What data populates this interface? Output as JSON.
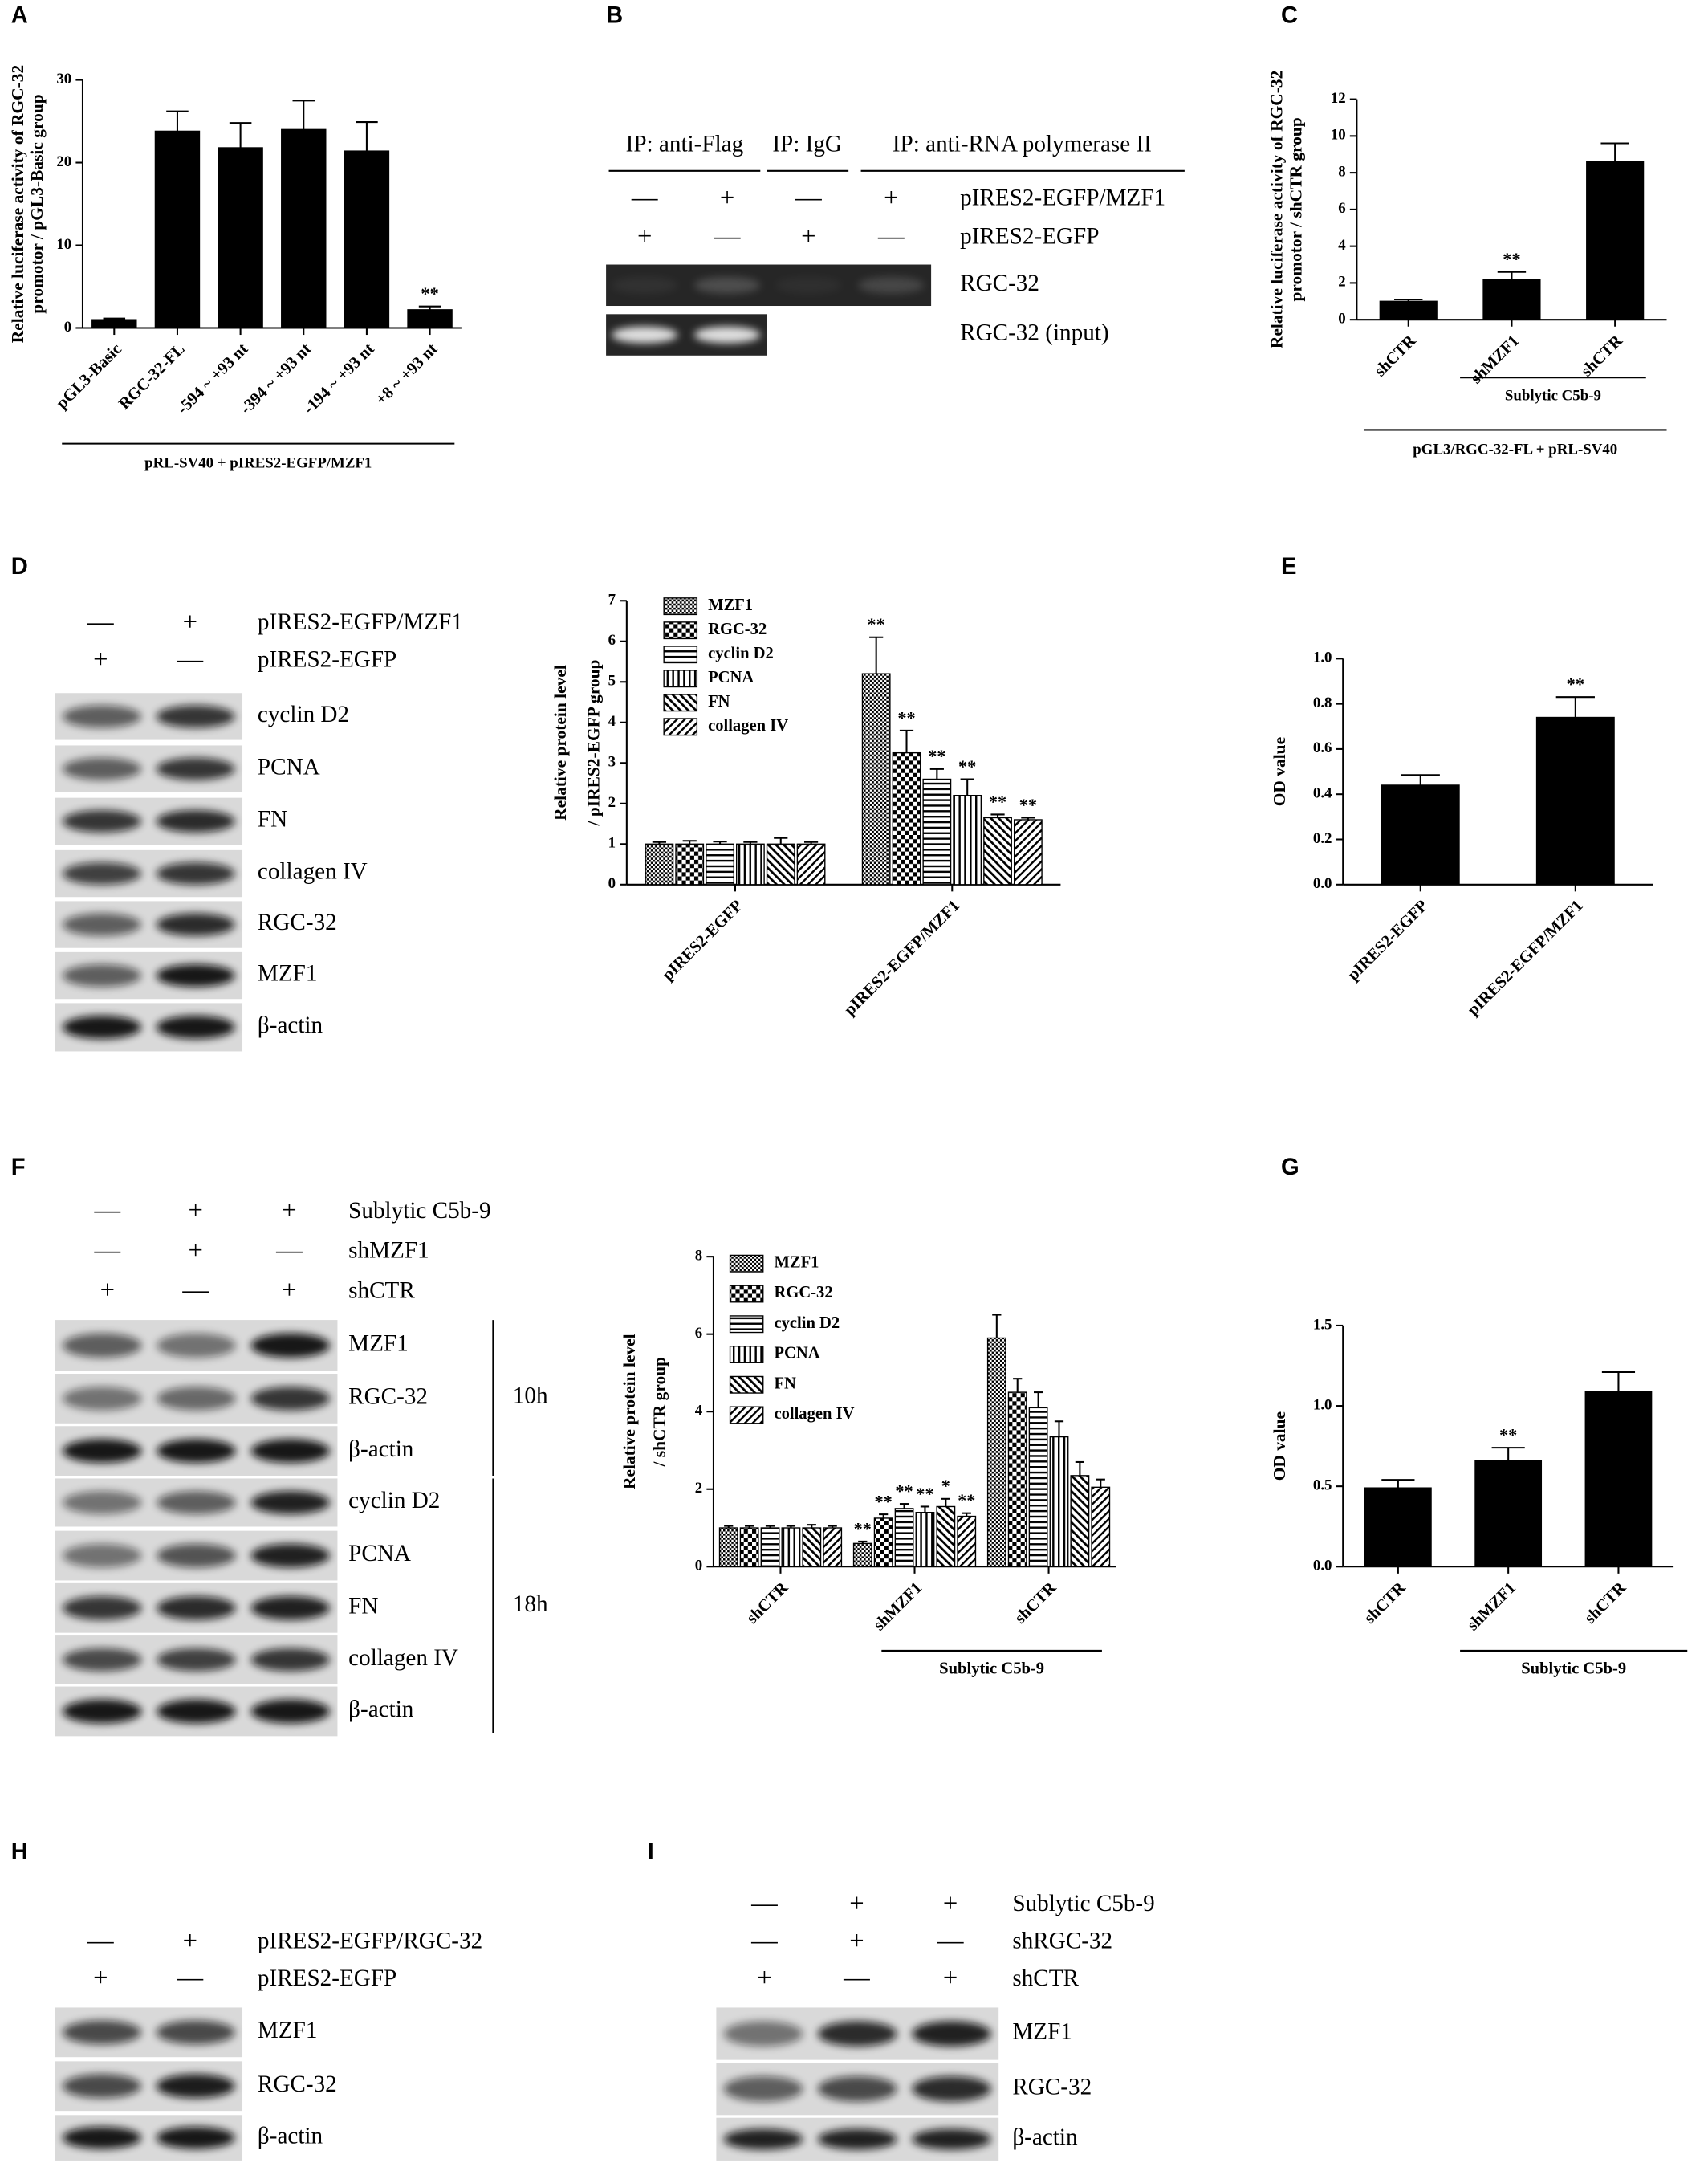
{
  "panel_letters": [
    "A",
    "B",
    "C",
    "D",
    "E",
    "F",
    "G",
    "H",
    "I"
  ],
  "chart_data": [
    {
      "type": "bar",
      "ylabel": [
        "Relative luciferase activity of RGC-32",
        "promotor / pGL3-Basic group"
      ],
      "categories": [
        "pGL3-Basic",
        "RGC-32-FL",
        "-594 ~ +93 nt",
        "-394 ~ +93 nt",
        "-194 ~ +93 nt",
        "+8 ~ +93 nt"
      ],
      "values": [
        1,
        23.8,
        21.8,
        24,
        21.4,
        2.2
      ],
      "errors": [
        0.15,
        2.4,
        3,
        3.5,
        3.5,
        0.4
      ],
      "significance": [
        null,
        null,
        null,
        null,
        null,
        "**"
      ],
      "ylim": [
        0,
        30
      ],
      "yticks": [
        0,
        10,
        20,
        30
      ],
      "color": "#000000",
      "xlabel": "pRL-SV40 + pIRES2-EGFP/MZF1"
    },
    {
      "type": "bar",
      "ylabel": [
        "Relative luciferase activity of RGC-32",
        "promotor / shCTR group"
      ],
      "categories": [
        "shCTR",
        "shMZF1",
        "shCTR"
      ],
      "values": [
        1,
        2.2,
        8.6
      ],
      "errors": [
        0.1,
        0.4,
        1.0
      ],
      "significance": [
        null,
        "**",
        null
      ],
      "ylim": [
        0,
        12
      ],
      "yticks": [
        0,
        2,
        4,
        6,
        8,
        10,
        12
      ],
      "color": "#000000",
      "group_label": "Sublytic C5b-9",
      "xlabel": "pGL3/RGC-32-FL + pRL-SV40"
    },
    {
      "type": "grouped-bar",
      "ylabel": [
        "Relative protein level",
        "/ pIRES2-EGFP group"
      ],
      "categories": [
        "pIRES2-EGFP",
        "pIRES2-EGFP/MZF1"
      ],
      "ylim": [
        0,
        7
      ],
      "yticks": [
        0,
        1,
        2,
        3,
        4,
        5,
        6,
        7
      ],
      "color": "#000000",
      "series": [
        {
          "name": "MZF1",
          "pattern": "dense-crosshatch",
          "values": [
            1,
            5.2
          ],
          "errors": [
            0.05,
            0.9
          ],
          "significance": [
            null,
            "**"
          ]
        },
        {
          "name": "RGC-32",
          "pattern": "checker",
          "values": [
            1,
            3.25
          ],
          "errors": [
            0.08,
            0.55
          ],
          "significance": [
            null,
            "**"
          ]
        },
        {
          "name": "cyclin D2",
          "pattern": "horizontal",
          "values": [
            1,
            2.6
          ],
          "errors": [
            0.06,
            0.25
          ],
          "significance": [
            null,
            "**"
          ]
        },
        {
          "name": "PCNA",
          "pattern": "vertical",
          "values": [
            1,
            2.2
          ],
          "errors": [
            0.05,
            0.4
          ],
          "significance": [
            null,
            "**"
          ]
        },
        {
          "name": "FN",
          "pattern": "diagonal-up",
          "values": [
            1,
            1.65
          ],
          "errors": [
            0.15,
            0.08
          ],
          "significance": [
            null,
            "**"
          ]
        },
        {
          "name": "collagen IV",
          "pattern": "diagonal-down",
          "values": [
            1,
            1.6
          ],
          "errors": [
            0.05,
            0.05
          ],
          "significance": [
            null,
            "**"
          ]
        }
      ]
    },
    {
      "type": "bar",
      "ylabel": [
        "OD value"
      ],
      "categories": [
        "pIRES2-EGFP",
        "pIRES2-EGFP/MZF1"
      ],
      "values": [
        0.44,
        0.74
      ],
      "errors": [
        0.045,
        0.09
      ],
      "significance": [
        null,
        "**"
      ],
      "ylim": [
        0,
        1.0
      ],
      "yticks": [
        {
          "value": 0,
          "label": "0.0"
        },
        {
          "value": 0.2,
          "label": "0.2"
        },
        {
          "value": 0.4,
          "label": "0.4"
        },
        {
          "value": 0.6,
          "label": "0.6"
        },
        {
          "value": 0.8,
          "label": "0.8"
        },
        {
          "value": 1.0,
          "label": "1.0"
        }
      ],
      "color": "#000000"
    },
    {
      "type": "grouped-bar",
      "ylabel": [
        "Relative protein level",
        "/ shCTR group"
      ],
      "categories": [
        "shCTR",
        "shMZF1",
        "shCTR"
      ],
      "ylim": [
        0,
        8
      ],
      "yticks": [
        0,
        2,
        4,
        6,
        8
      ],
      "color": "#000000",
      "group_label": "Sublytic C5b-9",
      "series": [
        {
          "name": "MZF1",
          "pattern": "dense-crosshatch",
          "values": [
            1,
            0.6,
            5.9
          ],
          "errors": [
            0.05,
            0.05,
            0.6
          ],
          "significance": [
            null,
            "**",
            null
          ]
        },
        {
          "name": "RGC-32",
          "pattern": "checker",
          "values": [
            1,
            1.25,
            4.5
          ],
          "errors": [
            0.05,
            0.1,
            0.35
          ],
          "significance": [
            null,
            "**",
            null
          ]
        },
        {
          "name": "cyclin D2",
          "pattern": "horizontal",
          "values": [
            1,
            1.5,
            4.1
          ],
          "errors": [
            0.05,
            0.12,
            0.4
          ],
          "significance": [
            null,
            "**",
            null
          ]
        },
        {
          "name": "PCNA",
          "pattern": "vertical",
          "values": [
            1,
            1.4,
            3.35
          ],
          "errors": [
            0.05,
            0.15,
            0.4
          ],
          "significance": [
            null,
            "**",
            null
          ]
        },
        {
          "name": "FN",
          "pattern": "diagonal-up",
          "values": [
            1,
            1.55,
            2.35
          ],
          "errors": [
            0.08,
            0.2,
            0.35
          ],
          "significance": [
            null,
            "*",
            null
          ]
        },
        {
          "name": "collagen IV",
          "pattern": "diagonal-down",
          "values": [
            1,
            1.3,
            2.05
          ],
          "errors": [
            0.05,
            0.08,
            0.2
          ],
          "significance": [
            null,
            "**",
            null
          ]
        }
      ]
    },
    {
      "type": "bar",
      "ylabel": [
        "OD value"
      ],
      "categories": [
        "shCTR",
        "shMZF1",
        "shCTR"
      ],
      "values": [
        0.49,
        0.66,
        1.09
      ],
      "errors": [
        0.05,
        0.08,
        0.12
      ],
      "significance": [
        null,
        "**",
        null
      ],
      "ylim": [
        0,
        1.5
      ],
      "yticks": [
        {
          "value": 0,
          "label": "0.0"
        },
        {
          "value": 0.5,
          "label": "0.5"
        },
        {
          "value": 1.0,
          "label": "1.0"
        },
        {
          "value": 1.5,
          "label": "1.5"
        }
      ],
      "color": "#000000",
      "group_label": "Sublytic C5b-9"
    }
  ],
  "gel_B": {
    "ip_groups": [
      "IP: anti-Flag",
      "IP: IgG",
      "IP: anti-RNA polymerase II"
    ],
    "conditions": [
      {
        "label": "pIRES2-EGFP/MZF1",
        "signs": [
          "—",
          "+",
          "—",
          "+"
        ]
      },
      {
        "label": "pIRES2-EGFP",
        "signs": [
          "+",
          "—",
          "+",
          "—"
        ]
      }
    ],
    "bands": [
      "RGC-32",
      "RGC-32 (input)"
    ]
  },
  "blot_D": {
    "conditions": [
      {
        "label": "pIRES2-EGFP/MZF1",
        "signs": [
          "—",
          "+"
        ]
      },
      {
        "label": "pIRES2-EGFP",
        "signs": [
          "+",
          "—"
        ]
      }
    ],
    "bands": [
      "cyclin D2",
      "PCNA",
      "FN",
      "collagen IV",
      "RGC-32",
      "MZF1",
      "β-actin"
    ]
  },
  "blot_F": {
    "conditions": [
      {
        "label": "Sublytic C5b-9",
        "signs": [
          "—",
          "+",
          "+"
        ]
      },
      {
        "label": "shMZF1",
        "signs": [
          "—",
          "+",
          "—"
        ]
      },
      {
        "label": "shCTR",
        "signs": [
          "+",
          "—",
          "+"
        ]
      }
    ],
    "bands": [
      "MZF1",
      "RGC-32",
      "β-actin",
      "cyclin D2",
      "PCNA",
      "FN",
      "collagen IV",
      "β-actin"
    ],
    "times": [
      "10h",
      "18h"
    ]
  },
  "blot_H": {
    "conditions": [
      {
        "label": "pIRES2-EGFP/RGC-32",
        "signs": [
          "—",
          "+"
        ]
      },
      {
        "label": "pIRES2-EGFP",
        "signs": [
          "+",
          "—"
        ]
      }
    ],
    "bands": [
      "MZF1",
      "RGC-32",
      "β-actin"
    ]
  },
  "blot_I": {
    "conditions": [
      {
        "label": "Sublytic C5b-9",
        "signs": [
          "—",
          "+",
          "+"
        ]
      },
      {
        "label": "shRGC-32",
        "signs": [
          "—",
          "+",
          "—"
        ]
      },
      {
        "label": "shCTR",
        "signs": [
          "+",
          "—",
          "+"
        ]
      }
    ],
    "bands": [
      "MZF1",
      "RGC-32",
      "β-actin"
    ]
  }
}
